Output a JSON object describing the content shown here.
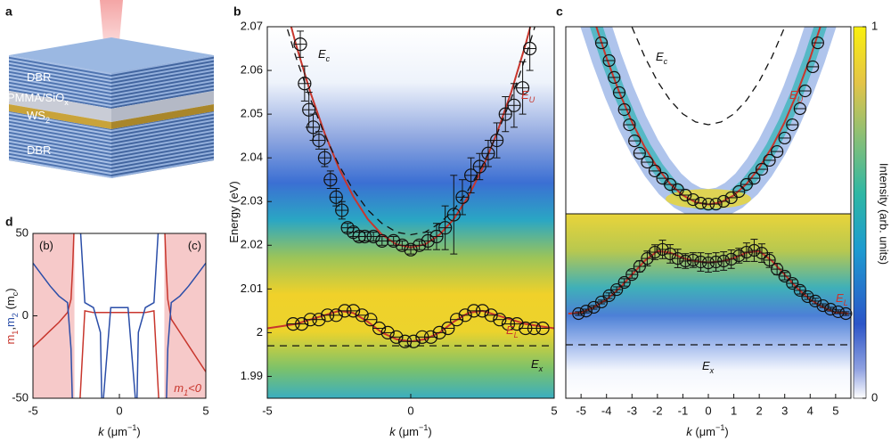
{
  "panel_a": {
    "label": "a",
    "layers": [
      "DBR",
      [
        {
          "text": "PMMA/SiO",
          "sub": "x"
        }
      ],
      [
        {
          "text": "WS",
          "sub": "2"
        }
      ],
      "DBR"
    ]
  },
  "chart_data": [
    {
      "type": "scatter",
      "panel": "b",
      "xlim": [
        -5,
        5
      ],
      "xticks": [
        -5,
        0,
        5
      ],
      "ylim": [
        1.985,
        2.07
      ],
      "yticks": [
        1.99,
        2,
        2.01,
        2.02,
        2.03,
        2.04,
        2.05,
        2.06,
        2.07
      ],
      "xlabel": [
        {
          "text": "k",
          "italic": true
        },
        {
          "text": " (μm",
          "sup": "−1"
        },
        {
          "text": ")"
        }
      ],
      "ylabel": "Energy (eV)",
      "points": [
        {
          "x": [
            -3.85,
            -3.7,
            -3.55,
            -3.4,
            -3.2,
            -3.0,
            -2.8,
            -2.6,
            -2.4,
            -2.2,
            -2.0,
            -1.8,
            -1.6,
            -1.3,
            -1.0,
            -0.6,
            -0.3,
            0.0,
            0.3,
            0.6,
            0.9,
            1.2,
            1.5,
            1.8,
            2.1,
            2.4,
            2.7,
            3.0,
            3.3,
            3.6,
            3.9,
            4.15
          ],
          "values": [
            2.066,
            2.057,
            2.051,
            2.047,
            2.044,
            2.04,
            2.035,
            2.031,
            2.028,
            2.024,
            2.023,
            2.022,
            2.022,
            2.022,
            2.021,
            2.021,
            2.02,
            2.019,
            2.02,
            2.021,
            2.022,
            2.024,
            2.027,
            2.031,
            2.036,
            2.038,
            2.041,
            2.044,
            2.05,
            2.052,
            2.056,
            2.065
          ],
          "errors": [
            0.003,
            0.004,
            0.004,
            0.003,
            0.002,
            0.002,
            0.002,
            0.002,
            0.002,
            0.001,
            0.001,
            0.001,
            0.001,
            0.001,
            0.001,
            0.001,
            0.001,
            0.001,
            0.001,
            0.002,
            0.003,
            0.005,
            0.009,
            0.004,
            0.004,
            0.003,
            0.003,
            0.004,
            0.004,
            0.005,
            0.006,
            0.005
          ]
        },
        {
          "x": [
            -4.1,
            -3.8,
            -3.5,
            -3.2,
            -2.9,
            -2.6,
            -2.3,
            -2.0,
            -1.7,
            -1.4,
            -1.1,
            -0.8,
            -0.5,
            -0.2,
            0.1,
            0.4,
            0.7,
            1.0,
            1.3,
            1.6,
            1.9,
            2.2,
            2.5,
            2.8,
            3.1,
            3.4,
            3.7,
            4.0,
            4.3,
            4.6
          ],
          "values": [
            2.002,
            2.002,
            2.003,
            2.003,
            2.004,
            2.004,
            2.005,
            2.005,
            2.004,
            2.003,
            2.001,
            2.0,
            1.999,
            1.998,
            1.998,
            1.999,
            1.999,
            2.0,
            2.001,
            2.003,
            2.004,
            2.005,
            2.005,
            2.004,
            2.003,
            2.002,
            2.002,
            2.001,
            2.001,
            2.001
          ]
        }
      ],
      "fits": [
        {
          "color": "#c8362d",
          "dashed": false,
          "x": [
            -5,
            -4.5,
            -4,
            -3.5,
            -3,
            -2.5,
            -2,
            -1.5,
            -1,
            -0.5,
            0,
            0.5,
            1,
            1.5,
            2,
            2.5,
            3,
            3.5,
            4,
            4.5,
            5
          ],
          "values": [
            2.092,
            2.0782,
            2.0659,
            2.055,
            2.0456,
            2.0376,
            2.0311,
            2.026,
            2.0224,
            2.0202,
            2.0195,
            2.0202,
            2.0224,
            2.026,
            2.0311,
            2.0376,
            2.0456,
            2.055,
            2.0659,
            2.0782,
            2.092
          ]
        },
        {
          "color": "#c8362d",
          "dashed": false,
          "x": [
            -5,
            -4.5,
            -4,
            -3.5,
            -3,
            -2.5,
            -2,
            -1.5,
            -1,
            -0.5,
            0,
            0.5,
            1,
            1.5,
            2,
            2.5,
            3,
            3.5,
            4,
            4.5,
            5
          ],
          "values": [
            2.001,
            2.0015,
            2.002,
            2.003,
            2.004,
            2.005,
            2.0045,
            2.0025,
            2.0,
            1.9985,
            1.998,
            1.9985,
            2.0,
            2.0025,
            2.0045,
            2.005,
            2.004,
            2.003,
            2.002,
            2.0015,
            2.001
          ]
        },
        {
          "color": "#111111",
          "dashed": true,
          "x": [
            -5,
            -4.5,
            -4,
            -3.5,
            -3,
            -2.5,
            -2,
            -1.5,
            -1,
            -0.5,
            0,
            0.5,
            1,
            1.5,
            2,
            2.5,
            3,
            3.5,
            4,
            4.5,
            5
          ],
          "values": [
            2.0859,
            2.0738,
            2.063,
            2.0535,
            2.0453,
            2.0383,
            2.0326,
            2.0281,
            2.025,
            2.023,
            2.0224,
            2.023,
            2.025,
            2.0281,
            2.0326,
            2.0383,
            2.0453,
            2.0535,
            2.063,
            2.0738,
            2.0859
          ]
        },
        {
          "color": "#111111",
          "dashed": true,
          "x": [
            -5,
            5
          ],
          "values": [
            1.997,
            1.997
          ]
        }
      ],
      "annotations": [
        {
          "text": "E",
          "sub": "c",
          "italic": true,
          "color": "#111111"
        },
        {
          "text": "E",
          "sub": "U",
          "italic": true,
          "color": "#c8362d"
        },
        {
          "text": "E",
          "sub": "L",
          "italic": true,
          "color": "#c8362d"
        },
        {
          "text": "E",
          "sub": "x",
          "italic": true,
          "color": "#111111"
        }
      ]
    },
    {
      "type": "scatter",
      "panel": "c",
      "xlim": [
        -5.6,
        5.6
      ],
      "ylim": [
        0,
        100
      ],
      "colorbar": {
        "label": "Intensity (arb. units)",
        "lim": [
          0,
          1
        ],
        "ticks": [
          0,
          1
        ]
      },
      "points": [
        {
          "x": [
            -4.2,
            -3.9,
            -3.7,
            -3.5,
            -3.3,
            -3.1,
            -2.9,
            -2.7,
            -2.4,
            -2.1,
            -1.8,
            -1.5,
            -1.2,
            -0.9,
            -0.6,
            -0.3,
            0,
            0.3,
            0.6,
            0.9,
            1.2,
            1.5,
            1.8,
            2.1,
            2.4,
            2.7,
            3.0,
            3.3,
            3.6,
            3.8,
            4.1,
            4.3
          ],
          "values": [
            91.4,
            81.9,
            72.9,
            64.8,
            55.7,
            47.6,
            39.0,
            32.4,
            27.6,
            22.9,
            19.0,
            15.7,
            12.9,
            10.0,
            7.6,
            5.7,
            5.2,
            5.2,
            6.7,
            8.6,
            11.9,
            15.7,
            19.0,
            23.8,
            28.6,
            33.3,
            40.5,
            47.6,
            56.2,
            65.7,
            78.6,
            91.4
          ]
        }
      ],
      "fits": [
        {
          "color": "#c8362d",
          "dashed": false,
          "x": [
            -5,
            -4.5,
            -4,
            -3.5,
            -3,
            -2.5,
            -2,
            -1.5,
            -1,
            -0.5,
            0,
            0.5,
            1,
            1.5,
            2,
            2.5,
            3,
            3.5,
            4,
            4.5,
            5
          ],
          "values": [
            127.5,
            104.2,
            83.4,
            65.0,
            49.1,
            35.6,
            24.6,
            16.0,
            9.9,
            6.2,
            5,
            6.2,
            9.9,
            16.0,
            24.6,
            35.6,
            49.1,
            65.0,
            83.4,
            104.2,
            127.5
          ]
        },
        {
          "color": "#111111",
          "dashed": true,
          "x": [
            -3.5,
            -3,
            -2.5,
            -2,
            -1.5,
            -1,
            -0.5,
            0,
            0.5,
            1,
            1.5,
            2,
            2.5,
            3,
            3.5
          ],
          "values": [
            118.7,
            99.8,
            83.9,
            70.8,
            60.7,
            53.4,
            49.1,
            47.6,
            49.1,
            53.4,
            60.7,
            70.8,
            83.9,
            99.8,
            118.7
          ]
        }
      ],
      "annotations": [
        {
          "text": "E",
          "sub": "c",
          "italic": true,
          "color": "#111111"
        },
        {
          "text": "E",
          "sub": "U",
          "italic": true,
          "color": "#c8362d"
        }
      ]
    },
    {
      "type": "scatter",
      "xlim": [
        -5.6,
        5.6
      ],
      "ylim": [
        0,
        100
      ],
      "xticks": [
        -5,
        -4,
        -3,
        -2,
        -1,
        0,
        1,
        2,
        3,
        4,
        5
      ],
      "xlabel": [
        {
          "text": "k",
          "italic": true
        },
        {
          "text": " (μm",
          "sup": "−1"
        },
        {
          "text": ")"
        }
      ],
      "points": [
        {
          "x": [
            -5.1,
            -4.8,
            -4.5,
            -4.2,
            -3.9,
            -3.6,
            -3.3,
            -3.0,
            -2.7,
            -2.4,
            -2.1,
            -1.8,
            -1.5,
            -1.2,
            -0.9,
            -0.6,
            -0.3,
            0,
            0.3,
            0.6,
            0.9,
            1.2,
            1.5,
            1.8,
            2.1,
            2.4,
            2.7,
            3.0,
            3.3,
            3.6,
            3.9,
            4.2,
            4.5,
            4.8,
            5.1,
            5.4
          ],
          "values": [
            45.9,
            47.3,
            49.3,
            52.2,
            55.6,
            58.9,
            62.8,
            67.1,
            71.5,
            75.8,
            79.2,
            80.7,
            78.3,
            75.8,
            74.4,
            74.9,
            73.9,
            73.4,
            73.9,
            74.4,
            75.4,
            77.3,
            79.2,
            80.2,
            78.7,
            74.9,
            70.0,
            66.2,
            62.3,
            58.5,
            55.1,
            52.7,
            50.2,
            48.3,
            46.9,
            45.9
          ],
          "errors": [
            1,
            1,
            1,
            1,
            1.5,
            1.5,
            2,
            2,
            3,
            4,
            4,
            5,
            5,
            5,
            4,
            4,
            5,
            5,
            5,
            5,
            5,
            4,
            5,
            6,
            5,
            4,
            3,
            2,
            2,
            2,
            1.5,
            1.5,
            1,
            1,
            1,
            1
          ]
        }
      ],
      "fits": [
        {
          "color": "#c8362d",
          "dashed": false,
          "x": [
            -5.5,
            -5,
            -4.5,
            -4,
            -3.5,
            -3,
            -2.5,
            -2,
            -1.5,
            -1,
            -0.5,
            0,
            0.5,
            1,
            1.5,
            2,
            2.5,
            3,
            3.5,
            4,
            4.5,
            5,
            5.5
          ],
          "values": [
            45.9,
            46.4,
            49.3,
            53.5,
            59.5,
            67,
            74.5,
            79.8,
            79,
            76,
            74.2,
            73.6,
            74.2,
            76,
            79,
            79.8,
            74.5,
            67,
            59.5,
            53.5,
            49.3,
            46.4,
            45.9
          ]
        },
        {
          "color": "#111111",
          "dashed": true,
          "x": [
            -5.6,
            5.6
          ],
          "values": [
            29,
            29
          ]
        }
      ],
      "annotations": [
        {
          "text": "E",
          "sub": "L",
          "italic": true,
          "color": "#c8362d"
        },
        {
          "text": "E",
          "sub": "x",
          "italic": true,
          "color": "#111111"
        }
      ]
    },
    {
      "type": "line",
      "panel": "d",
      "xlim": [
        -5,
        5
      ],
      "xticks": [
        -5,
        0,
        5
      ],
      "ylim": [
        -50,
        50
      ],
      "yticks": [
        -50,
        0,
        50
      ],
      "xlabel": [
        {
          "text": "k",
          "italic": true
        },
        {
          "text": " (μm",
          "sup": "−1"
        },
        {
          "text": ")"
        }
      ],
      "ylabel": [
        {
          "text": "m",
          "sub": "1",
          "color": "#c8362d"
        },
        {
          "text": ","
        },
        {
          "text": "m",
          "sub": "2",
          "color": "#2b4ea8"
        },
        {
          "text": " (m",
          "sub": "c"
        },
        {
          "text": ")"
        }
      ],
      "shaded": [
        [
          -5,
          -2.6
        ],
        [
          2.6,
          5
        ]
      ],
      "shade_color": "#f6c9c9",
      "x": [
        -5,
        -4.5,
        -4,
        -3.5,
        -3,
        -2.8,
        -2.7,
        -2.6,
        -2.5,
        -2.3,
        -2,
        -1.5,
        -1.1,
        -1,
        -0.5,
        0,
        0.5,
        1,
        1.1,
        1.5,
        2,
        2.3,
        2.5,
        2.6,
        2.7,
        2.8,
        3,
        3.5,
        4,
        4.5,
        5
      ],
      "curves": [
        {
          "color": "#c8362d",
          "values": [
            -19,
            -14,
            -9,
            -4,
            2,
            10,
            30,
            60,
            null,
            -55,
            3,
            2,
            2,
            2,
            2,
            2,
            2,
            2,
            2,
            2,
            3,
            -55,
            null,
            60,
            30,
            10,
            -2,
            -10,
            -18,
            -26,
            -34
          ]
        },
        {
          "color": "#2b4ea8",
          "values": [
            32,
            25,
            18,
            12,
            8,
            -20,
            -60,
            null,
            null,
            60,
            8,
            5,
            -10,
            -60,
            5,
            5,
            5,
            -60,
            -10,
            5,
            8,
            60,
            null,
            null,
            -60,
            -20,
            8,
            12,
            18,
            25,
            32
          ]
        }
      ],
      "annotations": [
        "(b)",
        "(c)",
        [
          {
            "text": "m",
            "sub": "1",
            "italic": true,
            "color": "#c8362d"
          },
          {
            "text": "<0",
            "italic": true,
            "color": "#c8362d"
          }
        ]
      ]
    }
  ]
}
